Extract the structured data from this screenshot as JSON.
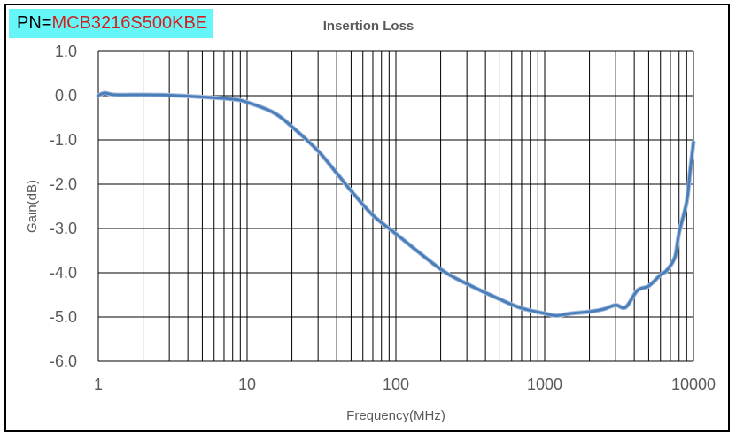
{
  "part_number": {
    "label": "PN=",
    "value": "MCB3216S500KBE"
  },
  "chart_data": {
    "type": "line",
    "title": "Insertion Loss",
    "xlabel": "Frequency(MHz)",
    "ylabel": "Gain(dB)",
    "xscale": "log",
    "xlim": [
      1,
      10000
    ],
    "ylim": [
      -6.0,
      1.0
    ],
    "xticks": [
      "1",
      "10",
      "100",
      "1000",
      "10000"
    ],
    "yticks": [
      "1.0",
      "0.0",
      "-1.0",
      "-2.0",
      "-3.0",
      "-4.0",
      "-5.0",
      "-6.0"
    ],
    "grid": true,
    "legend": "none",
    "series": [
      {
        "name": "Insertion Loss",
        "color": "#4a7ebb",
        "x": [
          1,
          1.1,
          1.3,
          2,
          3,
          5,
          8,
          10,
          15,
          20,
          30,
          40,
          50,
          70,
          100,
          200,
          300,
          500,
          700,
          1000,
          1200,
          1500,
          2000,
          2500,
          3000,
          3500,
          4200,
          5000,
          6000,
          6600,
          7500,
          8000,
          9000,
          9500,
          10000
        ],
        "y": [
          0.0,
          0.06,
          0.02,
          0.02,
          0.01,
          -0.03,
          -0.08,
          -0.15,
          -0.38,
          -0.7,
          -1.25,
          -1.75,
          -2.15,
          -2.7,
          -3.12,
          -3.92,
          -4.25,
          -4.6,
          -4.8,
          -4.92,
          -4.97,
          -4.92,
          -4.88,
          -4.82,
          -4.73,
          -4.78,
          -4.4,
          -4.3,
          -4.05,
          -3.95,
          -3.65,
          -3.1,
          -2.4,
          -1.7,
          -1.05
        ]
      }
    ]
  }
}
